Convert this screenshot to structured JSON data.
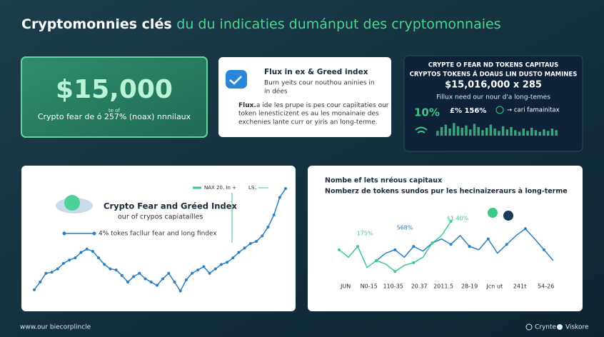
{
  "header": {
    "title": "Cryptomonnies clés",
    "title_highlight": "du du indicaties dumánput des cryptomonnaies"
  },
  "card_price": {
    "small": "te of",
    "value": "$15,000",
    "caption": "Crypto fear de ó 257% (noax) nnnilaux"
  },
  "card_flux": {
    "title": "Flux in ex & Greed index",
    "subtitle": [
      "Burn yeits cour nouthou aninies in",
      "in dées"
    ],
    "body_bold": "Flux.",
    "body": [
      "a ide les prupe is pes cour capiitaties our",
      "token lenesticizent es au les monainaie des",
      "exchenies lante curr or yiris an long-terme."
    ]
  },
  "card_tokens": {
    "title": [
      "CRYPTE O FEAR ND TOKENS CAPITAUS",
      "CRYPTOS TOKENS Á DOAUS LIN DUSTO MAMINES"
    ],
    "value": "$15,016,000 x 285",
    "caption": "Fillux need our nour d'a long-temes",
    "stat_left": "10%",
    "stat_mid": "£% 156%",
    "stat_right": "→ cari famainitax"
  },
  "chart_data": [
    {
      "type": "bar",
      "color": "#3aa57a",
      "ylim": [
        0,
        100
      ],
      "values": [
        30,
        55,
        70,
        45,
        80,
        60,
        50,
        65,
        40,
        75,
        55,
        35,
        50,
        70,
        45,
        30,
        60,
        40,
        55,
        35,
        25,
        45,
        30,
        50,
        35,
        25,
        40,
        30,
        45,
        35
      ]
    },
    {
      "type": "line",
      "title": "Crypto Fear and Gréed Index",
      "subtitle": "our of crypos capiataílles",
      "note": "4% tokes facllur fear and long findex",
      "legend_extra": "LS..",
      "color_extra": "#3cc987",
      "ylim": [
        0,
        100
      ],
      "series": [
        {
          "name": "NAX 20. In +",
          "color": "#2a7fc1",
          "values": [
            4,
            11,
            19,
            20,
            23,
            28,
            31,
            33,
            38,
            41,
            39,
            33,
            27,
            23,
            22,
            17,
            11,
            16,
            19,
            14,
            11,
            8,
            14,
            19,
            11,
            3,
            13,
            19,
            22,
            25,
            19,
            23,
            27,
            29,
            33,
            38,
            42,
            46,
            48,
            53,
            61,
            72,
            88,
            96
          ]
        }
      ]
    },
    {
      "type": "line",
      "title": "Nombe ef lets nréous capitaux",
      "subtitle": "Nomberz de tokens sundos pur les hecinaizeraurs à long-terme",
      "xlim": [
        0,
        23
      ],
      "ylim": [
        0,
        100
      ],
      "x": [
        0,
        1,
        2,
        3,
        4,
        5,
        6,
        7,
        8,
        9,
        10,
        11,
        12,
        13,
        14,
        15,
        16,
        17,
        18,
        19,
        20,
        21,
        22,
        23
      ],
      "xticks": [
        {
          "value": 0.7,
          "label": "JUN"
        },
        {
          "value": 3.2,
          "label": "N0-15"
        },
        {
          "value": 5.8,
          "label": "110-35"
        },
        {
          "value": 8.6,
          "label": "20.37"
        },
        {
          "value": 11.2,
          "label": "2011.5"
        },
        {
          "value": 14,
          "label": "28-19"
        },
        {
          "value": 16.7,
          "label": "Jcn ut"
        },
        {
          "value": 19.4,
          "label": "241t"
        },
        {
          "value": 22.2,
          "label": "54-26"
        }
      ],
      "annotations": [
        "175%",
        "568%",
        "$1.40%"
      ],
      "series": [
        {
          "color": "#2a7fc1",
          "values": [
            null,
            null,
            null,
            null,
            21,
            32,
            37,
            26,
            42,
            35,
            47,
            53,
            45,
            58,
            42,
            37,
            53,
            32,
            45,
            58,
            68,
            53,
            37,
            21
          ]
        },
        {
          "color": "#3cc987",
          "values": [
            37,
            26,
            42,
            11,
            21,
            16,
            5,
            14,
            18,
            26,
            47,
            58,
            79,
            null,
            null,
            null,
            null,
            null,
            null,
            null,
            null,
            null,
            null,
            null
          ]
        }
      ]
    }
  ],
  "footer": {
    "url": "www.our biecorplincle",
    "brand_left": "Crynte",
    "brand_right": "Viskore"
  }
}
